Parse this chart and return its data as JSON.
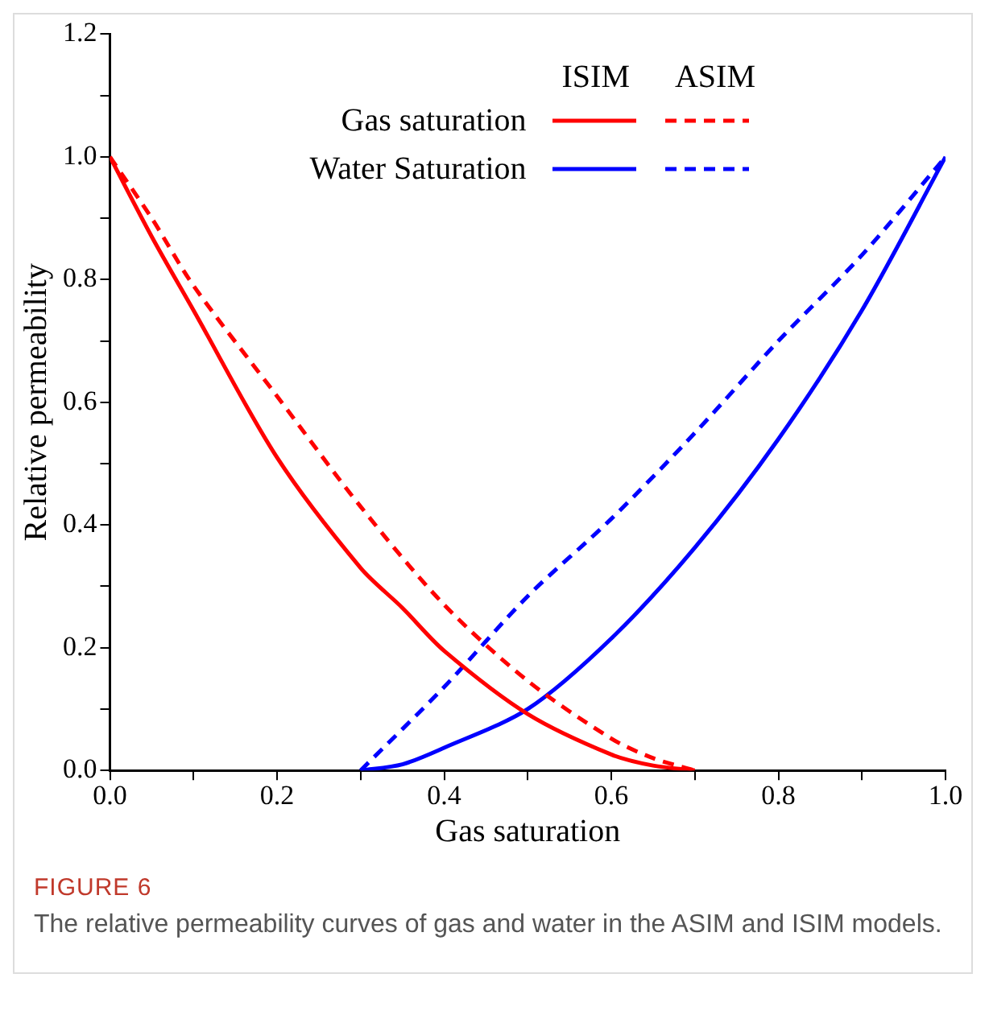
{
  "chart_data": {
    "type": "line",
    "xlabel": "Gas saturation",
    "ylabel": "Relative permeability",
    "xlim": [
      0,
      1
    ],
    "ylim": [
      0,
      1.2
    ],
    "xticks": [
      {
        "value": 0,
        "label": "0.0"
      },
      {
        "value": 0.1,
        "label": null
      },
      0.2,
      {
        "value": 0.3,
        "label": null
      },
      0.4,
      {
        "value": 0.5,
        "label": null
      },
      0.6,
      {
        "value": 0.7,
        "label": null
      },
      0.8,
      {
        "value": 0.9,
        "label": null
      },
      {
        "value": 1,
        "label": "1.0"
      }
    ],
    "yticks": [
      {
        "value": 0,
        "label": "0.0"
      },
      {
        "value": 0.1,
        "label": null
      },
      0.2,
      {
        "value": 0.3,
        "label": null
      },
      0.4,
      {
        "value": 0.5,
        "label": null
      },
      0.6,
      {
        "value": 0.7,
        "label": null
      },
      0.8,
      {
        "value": 0.9,
        "label": null
      },
      {
        "value": 1,
        "label": "1.0"
      },
      {
        "value": 1.1,
        "label": null
      },
      1.2
    ],
    "grid": false,
    "legend": "top right",
    "marker": "none",
    "legend_title": null,
    "annotations": [
      "ISIM",
      "ASIM",
      "FIGURE 6",
      "The relative permeability curves of gas and water in the ASIM and ISIM models."
    ],
    "series": [
      {
        "name": "Gas saturation",
        "color": "#ff0000",
        "line_style": "solid",
        "x": [
          0,
          0.05,
          0.1,
          0.2,
          0.3,
          0.35,
          0.4,
          0.5,
          0.6,
          0.65,
          0.7
        ],
        "values": [
          1,
          0.87,
          0.75,
          0.51,
          0.33,
          0.265,
          0.195,
          0.092,
          0.026,
          0.008,
          0
        ]
      },
      {
        "color": "#ff0000",
        "line_style": "dashed",
        "x": [
          0,
          0.05,
          0.1,
          0.2,
          0.3,
          0.4,
          0.5,
          0.6,
          0.65,
          0.7
        ],
        "values": [
          1,
          0.9,
          0.79,
          0.61,
          0.43,
          0.27,
          0.146,
          0.052,
          0.02,
          0
        ]
      },
      {
        "name": "Water Saturation",
        "color": "#0000ff",
        "line_style": "solid",
        "x": [
          0.3,
          0.35,
          0.4,
          0.5,
          0.6,
          0.7,
          0.8,
          0.9,
          1
        ],
        "values": [
          0,
          0.01,
          0.037,
          0.1,
          0.215,
          0.363,
          0.54,
          0.75,
          1
        ]
      },
      {
        "color": "#0000ff",
        "line_style": "dashed",
        "x": [
          0.3,
          0.4,
          0.5,
          0.6,
          0.7,
          0.8,
          0.9,
          1
        ],
        "values": [
          0,
          0.136,
          0.284,
          0.41,
          0.55,
          0.7,
          0.84,
          1
        ]
      }
    ]
  }
}
